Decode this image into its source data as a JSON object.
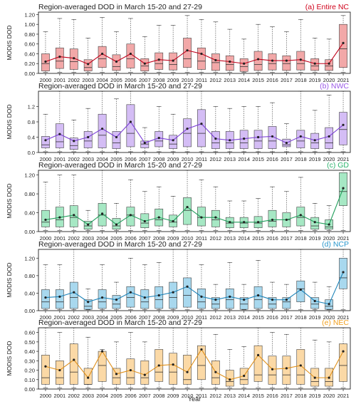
{
  "figure": {
    "xlabel": "Year",
    "years": [
      "2000",
      "2001",
      "2002",
      "2003",
      "2004",
      "2005",
      "2006",
      "2007",
      "2008",
      "2009",
      "2010",
      "2011",
      "2012",
      "2013",
      "2014",
      "2015",
      "2016",
      "2017",
      "2018",
      "2019",
      "2020",
      "2021"
    ]
  },
  "chart_data": [
    {
      "type": "box",
      "title": "Region-averaged DOD in March 15-20 and 27-29",
      "region_label": "(a) Entire NC",
      "ylabel": "MODIS DOD",
      "ylim": [
        0,
        1.25
      ],
      "yticks": [
        "0.00",
        "0.20",
        "0.40",
        "0.60",
        "0.80",
        "1.00",
        "1.20"
      ],
      "ytick_values": [
        0,
        0.2,
        0.4,
        0.6,
        0.8,
        1.0,
        1.2
      ],
      "line_color": "#c0001a",
      "fill_color": "#f2a8a8",
      "label_color": "#d0021b",
      "years": [
        "2000",
        "2001",
        "2002",
        "2003",
        "2004",
        "2005",
        "2006",
        "2007",
        "2008",
        "2009",
        "2010",
        "2011",
        "2012",
        "2013",
        "2014",
        "2015",
        "2016",
        "2017",
        "2018",
        "2019",
        "2020",
        "2021"
      ],
      "whisker_low": [
        0.02,
        0.02,
        0.02,
        0.02,
        0.02,
        0.02,
        0.02,
        0.02,
        0.02,
        0.02,
        0.02,
        0.02,
        0.02,
        0.02,
        0.02,
        0.02,
        0.02,
        0.02,
        0.02,
        0.02,
        0.02,
        0.02
      ],
      "q1": [
        0.05,
        0.1,
        0.08,
        0.05,
        0.12,
        0.06,
        0.11,
        0.05,
        0.08,
        0.07,
        0.12,
        0.08,
        0.06,
        0.06,
        0.04,
        0.06,
        0.07,
        0.06,
        0.07,
        0.06,
        0.06,
        0.12
      ],
      "median": [
        0.2,
        0.25,
        0.24,
        0.12,
        0.3,
        0.14,
        0.3,
        0.15,
        0.2,
        0.18,
        0.3,
        0.25,
        0.22,
        0.18,
        0.14,
        0.18,
        0.2,
        0.2,
        0.2,
        0.15,
        0.15,
        0.5
      ],
      "q3": [
        0.4,
        0.52,
        0.5,
        0.28,
        0.55,
        0.38,
        0.6,
        0.3,
        0.42,
        0.42,
        0.72,
        0.52,
        0.4,
        0.36,
        0.3,
        0.45,
        0.4,
        0.36,
        0.45,
        0.3,
        0.28,
        1.0
      ],
      "whisker_high": [
        0.85,
        1.12,
        1.1,
        0.72,
        1.14,
        0.85,
        1.12,
        0.75,
        0.98,
        0.98,
        1.18,
        1.1,
        1.05,
        0.9,
        0.7,
        1.0,
        0.95,
        0.85,
        1.1,
        0.72,
        0.7,
        1.18
      ],
      "mean": [
        0.24,
        0.34,
        0.31,
        0.19,
        0.4,
        0.24,
        0.4,
        0.2,
        0.28,
        0.26,
        0.47,
        0.4,
        0.27,
        0.24,
        0.2,
        0.29,
        0.26,
        0.26,
        0.28,
        0.2,
        0.2,
        0.62
      ]
    },
    {
      "type": "box",
      "title": "Region-averaged DOD in March 15-20 and 27-29",
      "region_label": "(b) NWC",
      "ylabel": "MODIS DOD",
      "ylim": [
        0,
        1.6
      ],
      "yticks": [
        "0.0",
        "0.4",
        "0.8",
        "1.2"
      ],
      "ytick_values": [
        0,
        0.4,
        0.8,
        1.2
      ],
      "line_color": "#7b3fd6",
      "fill_color": "#d4bdf5",
      "label_color": "#9b59e8",
      "years": [
        "2000",
        "2001",
        "2002",
        "2003",
        "2004",
        "2005",
        "2006",
        "2007",
        "2008",
        "2009",
        "2010",
        "2011",
        "2012",
        "2013",
        "2014",
        "2015",
        "2016",
        "2017",
        "2018",
        "2019",
        "2020",
        "2021"
      ],
      "whisker_low": [
        0.02,
        0.02,
        0.02,
        0.02,
        0.02,
        0.02,
        0.02,
        0.02,
        0.02,
        0.02,
        0.02,
        0.02,
        0.02,
        0.02,
        0.02,
        0.02,
        0.02,
        0.02,
        0.02,
        0.02,
        0.02,
        0.02
      ],
      "q1": [
        0.12,
        0.12,
        0.08,
        0.12,
        0.12,
        0.1,
        0.15,
        0.12,
        0.15,
        0.1,
        0.15,
        0.15,
        0.1,
        0.1,
        0.1,
        0.1,
        0.1,
        0.15,
        0.12,
        0.1,
        0.1,
        0.2
      ],
      "median": [
        0.2,
        0.28,
        0.18,
        0.3,
        0.45,
        0.25,
        0.5,
        0.22,
        0.3,
        0.22,
        0.5,
        0.5,
        0.25,
        0.25,
        0.25,
        0.3,
        0.3,
        0.2,
        0.3,
        0.25,
        0.25,
        0.6
      ],
      "q3": [
        0.42,
        0.75,
        0.38,
        0.55,
        1.0,
        0.55,
        1.25,
        0.3,
        0.55,
        0.45,
        0.88,
        1.12,
        0.55,
        0.55,
        0.58,
        0.58,
        0.68,
        0.35,
        0.58,
        0.5,
        0.65,
        1.05
      ],
      "whisker_high": [
        1.0,
        1.6,
        0.85,
        1.15,
        1.6,
        1.4,
        1.6,
        0.65,
        1.2,
        1.0,
        1.6,
        1.6,
        1.2,
        1.15,
        1.2,
        1.2,
        1.3,
        0.75,
        1.6,
        1.1,
        1.5,
        1.6
      ],
      "mean": [
        0.32,
        0.48,
        0.3,
        0.4,
        0.62,
        0.4,
        0.8,
        0.25,
        0.38,
        0.32,
        0.62,
        0.75,
        0.36,
        0.32,
        0.36,
        0.4,
        0.42,
        0.25,
        0.42,
        0.32,
        0.42,
        0.72
      ]
    },
    {
      "type": "box",
      "title": "Region-averaged DOD in March 15-20 and 27-29",
      "region_label": "(c) GD",
      "ylabel": "MODIS DOD",
      "ylim": [
        0,
        1.3
      ],
      "yticks": [
        "0.00",
        "0.40",
        "0.80",
        "1.20"
      ],
      "ytick_values": [
        0,
        0.4,
        0.8,
        1.2
      ],
      "line_color": "#1f9e5a",
      "fill_color": "#a6e8c4",
      "label_color": "#2ab36c",
      "years": [
        "2000",
        "2001",
        "2002",
        "2003",
        "2004",
        "2005",
        "2006",
        "2007",
        "2008",
        "2009",
        "2010",
        "2011",
        "2012",
        "2013",
        "2014",
        "2015",
        "2016",
        "2017",
        "2018",
        "2019",
        "2020",
        "2021"
      ],
      "whisker_low": [
        0.02,
        0.02,
        0.02,
        0.02,
        0.02,
        0.02,
        0.02,
        0.02,
        0.02,
        0.02,
        0.02,
        0.02,
        0.02,
        0.02,
        0.02,
        0.02,
        0.02,
        0.02,
        0.02,
        0.02,
        0.02,
        0.02
      ],
      "q1": [
        0.1,
        0.1,
        0.1,
        0.05,
        0.12,
        0.05,
        0.12,
        0.08,
        0.12,
        0.1,
        0.15,
        0.12,
        0.1,
        0.08,
        0.08,
        0.08,
        0.1,
        0.1,
        0.12,
        0.05,
        0.05,
        0.55
      ],
      "median": [
        0.2,
        0.25,
        0.3,
        0.12,
        0.35,
        0.12,
        0.35,
        0.18,
        0.25,
        0.2,
        0.45,
        0.3,
        0.25,
        0.18,
        0.18,
        0.18,
        0.22,
        0.25,
        0.3,
        0.12,
        0.1,
        0.85
      ],
      "q3": [
        0.45,
        0.52,
        0.55,
        0.22,
        0.6,
        0.28,
        0.52,
        0.38,
        0.48,
        0.35,
        0.72,
        0.52,
        0.45,
        0.3,
        0.3,
        0.32,
        0.45,
        0.4,
        0.52,
        0.3,
        0.25,
        1.25
      ],
      "whisker_high": [
        1.05,
        1.2,
        1.2,
        0.45,
        1.3,
        0.6,
        1.1,
        0.85,
        0.95,
        0.75,
        1.3,
        1.1,
        0.95,
        0.65,
        0.65,
        0.7,
        0.95,
        0.85,
        1.15,
        0.6,
        0.55,
        1.3
      ],
      "mean": [
        0.25,
        0.3,
        0.35,
        0.15,
        0.38,
        0.15,
        0.35,
        0.22,
        0.3,
        0.22,
        0.52,
        0.3,
        0.3,
        0.2,
        0.2,
        0.2,
        0.25,
        0.25,
        0.35,
        0.2,
        0.15,
        0.92
      ]
    },
    {
      "type": "box",
      "title": "Region-averaged DOD in March 15-20 and 27-29",
      "region_label": "(d) NCP",
      "ylabel": "MODIS DOD",
      "ylim": [
        0,
        1.4
      ],
      "yticks": [
        "0.00",
        "0.40",
        "0.80",
        "1.20"
      ],
      "ytick_values": [
        0,
        0.4,
        0.8,
        1.2
      ],
      "line_color": "#1a82b8",
      "fill_color": "#a8d8ee",
      "label_color": "#2a97cc",
      "years": [
        "2000",
        "2001",
        "2002",
        "2003",
        "2004",
        "2005",
        "2006",
        "2007",
        "2008",
        "2009",
        "2010",
        "2011",
        "2012",
        "2013",
        "2014",
        "2015",
        "2016",
        "2017",
        "2018",
        "2019",
        "2020",
        "2021"
      ],
      "whisker_low": [
        0.02,
        0.02,
        0.02,
        0.02,
        0.02,
        0.02,
        0.02,
        0.02,
        0.02,
        0.02,
        0.02,
        0.02,
        0.02,
        0.02,
        0.02,
        0.02,
        0.02,
        0.02,
        0.02,
        0.02,
        0.02,
        0.02
      ],
      "q1": [
        0.05,
        0.05,
        0.05,
        0.03,
        0.05,
        0.05,
        0.08,
        0.05,
        0.05,
        0.05,
        0.08,
        0.05,
        0.05,
        0.05,
        0.03,
        0.05,
        0.05,
        0.05,
        0.2,
        0.05,
        0.03,
        0.5
      ],
      "median": [
        0.2,
        0.2,
        0.3,
        0.1,
        0.2,
        0.15,
        0.3,
        0.2,
        0.25,
        0.3,
        0.35,
        0.2,
        0.15,
        0.25,
        0.15,
        0.25,
        0.15,
        0.2,
        0.5,
        0.15,
        0.1,
        0.75
      ],
      "q3": [
        0.48,
        0.48,
        0.65,
        0.25,
        0.48,
        0.35,
        0.55,
        0.48,
        0.55,
        0.65,
        0.75,
        0.5,
        0.3,
        0.5,
        0.3,
        0.55,
        0.3,
        0.3,
        0.68,
        0.3,
        0.25,
        1.2
      ],
      "whisker_high": [
        1.05,
        1.05,
        1.4,
        0.5,
        1.05,
        0.65,
        1.2,
        1.05,
        1.1,
        1.4,
        1.4,
        1.05,
        0.6,
        1.1,
        0.6,
        1.15,
        0.65,
        0.6,
        1.4,
        0.65,
        0.55,
        1.4
      ],
      "mean": [
        0.3,
        0.32,
        0.42,
        0.2,
        0.3,
        0.25,
        0.42,
        0.3,
        0.35,
        0.42,
        0.55,
        0.32,
        0.25,
        0.32,
        0.25,
        0.35,
        0.25,
        0.25,
        0.48,
        0.22,
        0.15,
        0.88
      ]
    },
    {
      "type": "box",
      "title": "Region-averaged DOD in March 15-20 and 27-29",
      "region_label": "(e) NEC",
      "ylabel": "MODIS DOD",
      "ylim": [
        0,
        0.65
      ],
      "yticks": [
        "0.00",
        "0.10",
        "0.20",
        "0.30",
        "0.40",
        "0.50",
        "0.60"
      ],
      "ytick_values": [
        0,
        0.1,
        0.2,
        0.3,
        0.4,
        0.5,
        0.6
      ],
      "line_color": "#e0901a",
      "fill_color": "#fbd9a6",
      "label_color": "#f0a020",
      "years": [
        "2000",
        "2001",
        "2002",
        "2003",
        "2004",
        "2005",
        "2006",
        "2007",
        "2008",
        "2009",
        "2010",
        "2011",
        "2012",
        "2013",
        "2014",
        "2015",
        "2016",
        "2017",
        "2018",
        "2019",
        "2020",
        "2021"
      ],
      "whisker_low": [
        0.01,
        0.01,
        0.01,
        0.01,
        0.01,
        0.01,
        0.01,
        0.01,
        0.01,
        0.01,
        0.01,
        0.01,
        0.01,
        0.01,
        0.01,
        0.01,
        0.01,
        0.01,
        0.01,
        0.01,
        0.01,
        0.01
      ],
      "q1": [
        0.05,
        0.05,
        0.05,
        0.05,
        0.08,
        0.05,
        0.05,
        0.05,
        0.08,
        0.05,
        0.05,
        0.1,
        0.05,
        0.03,
        0.05,
        0.08,
        0.05,
        0.05,
        0.05,
        0.03,
        0.03,
        0.08
      ],
      "median": [
        0.12,
        0.12,
        0.18,
        0.05,
        0.25,
        0.12,
        0.12,
        0.12,
        0.18,
        0.18,
        0.1,
        0.25,
        0.12,
        0.08,
        0.1,
        0.15,
        0.15,
        0.15,
        0.15,
        0.08,
        0.08,
        0.25
      ],
      "q3": [
        0.36,
        0.3,
        0.48,
        0.22,
        0.4,
        0.22,
        0.32,
        0.3,
        0.42,
        0.38,
        0.36,
        0.46,
        0.3,
        0.2,
        0.22,
        0.46,
        0.35,
        0.35,
        0.42,
        0.22,
        0.22,
        0.48
      ],
      "whisker_high": [
        0.65,
        0.6,
        0.65,
        0.55,
        0.42,
        0.5,
        0.6,
        0.5,
        0.65,
        0.65,
        0.65,
        0.65,
        0.58,
        0.42,
        0.45,
        0.65,
        0.6,
        0.58,
        0.65,
        0.52,
        0.5,
        0.65
      ],
      "mean": [
        0.24,
        0.2,
        0.31,
        0.12,
        0.4,
        0.16,
        0.2,
        0.15,
        0.25,
        0.26,
        0.18,
        0.42,
        0.18,
        0.1,
        0.14,
        0.36,
        0.21,
        0.22,
        0.25,
        0.12,
        0.12,
        0.4
      ]
    }
  ]
}
